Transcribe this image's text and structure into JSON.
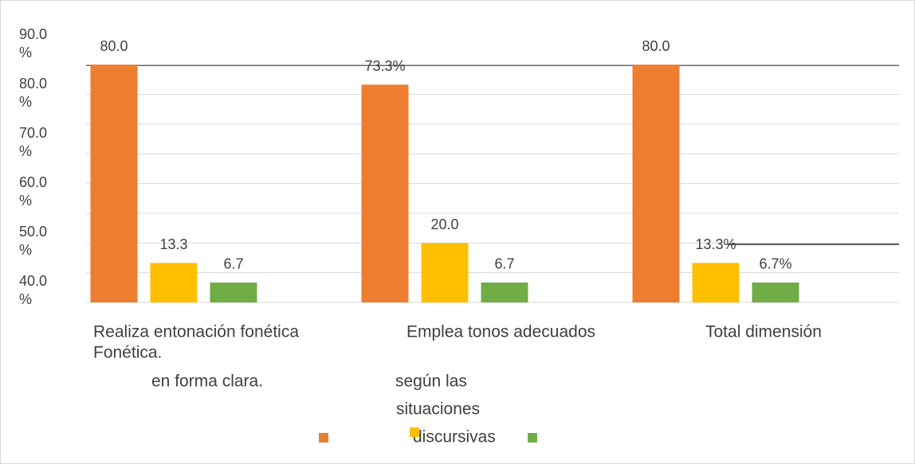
{
  "chart_data": {
    "type": "bar",
    "categories": [
      "Realiza entonación fonética",
      "Emplea tonos adecuados",
      "Total dimensión"
    ],
    "annotations": [
      "Fonética.",
      "en forma clara.",
      "según las",
      "situaciones",
      "discursivas"
    ],
    "series": [
      {
        "color": "#ed7d31",
        "values": [
          80.0,
          73.3,
          80.0
        ],
        "value_labels": [
          "80.0",
          "73.3%",
          "80.0"
        ]
      },
      {
        "color": "#ffc000",
        "values": [
          13.3,
          20.0,
          13.3
        ],
        "value_labels": [
          "13.3",
          "20.0",
          "13.3%"
        ]
      },
      {
        "color": "#70ad47",
        "values": [
          6.7,
          6.7,
          6.7
        ],
        "value_labels": [
          "6.7",
          "6.7",
          "6.7%"
        ]
      }
    ],
    "ylim": [
      0,
      90
    ],
    "yticks": [
      {
        "value": 90,
        "label": "90.0 %"
      },
      {
        "value": 80,
        "label": "80.0 %"
      },
      {
        "value": 70,
        "label": "70.0 %"
      },
      {
        "value": 60,
        "label": "60.0 %"
      },
      {
        "value": 50,
        "label": "50.0 %"
      },
      {
        "value": 40,
        "label": "40.0 %"
      }
    ],
    "gridlines": [
      0,
      10,
      20,
      30,
      40,
      50,
      60,
      70,
      80
    ],
    "grid": true
  }
}
